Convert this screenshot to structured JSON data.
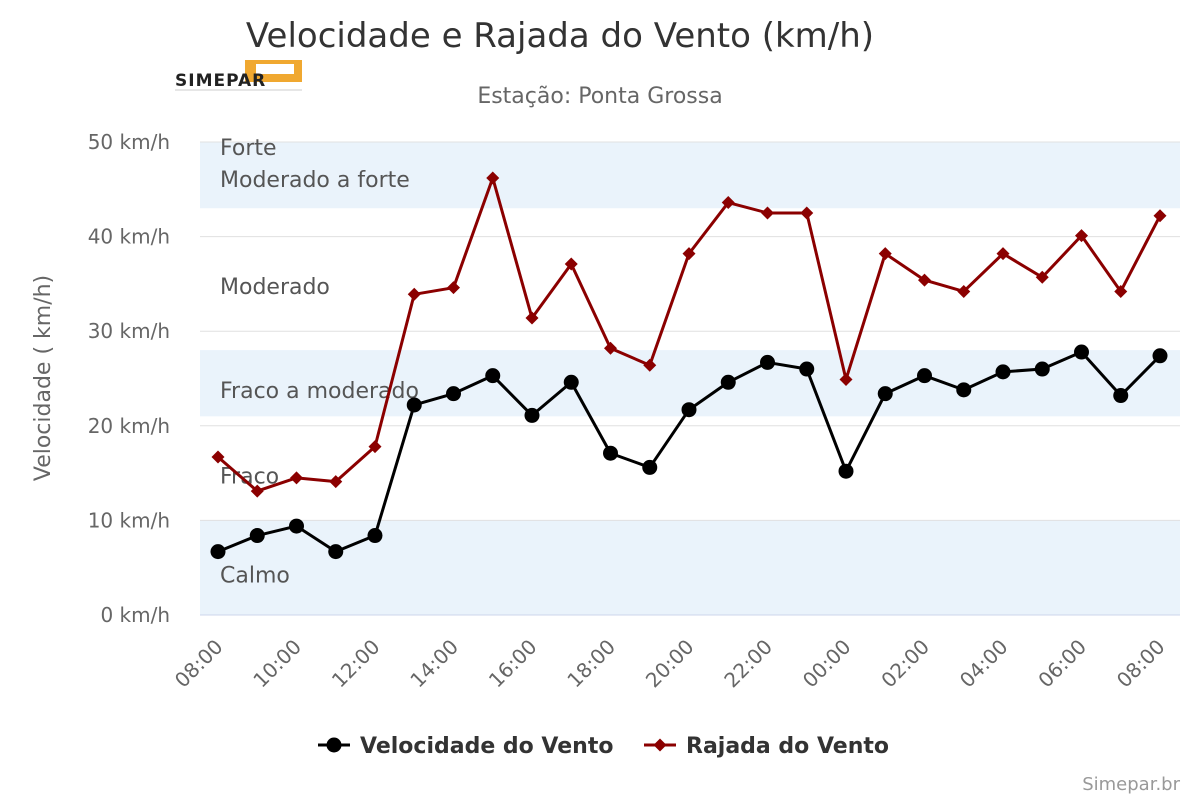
{
  "title": "Velocidade e Rajada do Vento (km/h)",
  "subtitle": "Estação: Ponta Grossa",
  "logo_text": "SIMEPAR",
  "credits": "Simepar.br",
  "chart_data": {
    "type": "line",
    "title": "Velocidade e Rajada do Vento (km/h)",
    "subtitle": "Estação: Ponta Grossa",
    "ylabel": "Velocidade ( km/h)",
    "xlabel": "",
    "ylim": [
      0,
      50
    ],
    "yticks": [
      0,
      10,
      20,
      30,
      40,
      50
    ],
    "ytick_labels": [
      "0 km/h",
      "10 km/h",
      "20 km/h",
      "30 km/h",
      "40 km/h",
      "50 km/h"
    ],
    "x": [
      "08:00",
      "09:00",
      "10:00",
      "11:00",
      "12:00",
      "13:00",
      "14:00",
      "15:00",
      "16:00",
      "17:00",
      "18:00",
      "19:00",
      "20:00",
      "21:00",
      "22:00",
      "23:00",
      "00:00",
      "01:00",
      "02:00",
      "03:00",
      "04:00",
      "05:00",
      "06:00",
      "07:00",
      "08:00"
    ],
    "xtick_labels": [
      "08:00",
      "10:00",
      "12:00",
      "14:00",
      "16:00",
      "18:00",
      "20:00",
      "22:00",
      "00:00",
      "02:00",
      "04:00",
      "06:00",
      "08:00"
    ],
    "grid": true,
    "legend_position": "bottom",
    "plot_bands": [
      {
        "from": 0,
        "to": 10,
        "label": "Calmo",
        "color": "#eaf3fb"
      },
      {
        "from": 10,
        "to": 21,
        "label": "Fraco",
        "color": "#ffffff"
      },
      {
        "from": 21,
        "to": 28,
        "label": "Fraco a moderado",
        "color": "#eaf3fb"
      },
      {
        "from": 28,
        "to": 43,
        "label": "Moderado",
        "color": "#ffffff"
      },
      {
        "from": 43,
        "to": 50,
        "label": "Moderado a forte",
        "color": "#eaf3fb"
      },
      {
        "from": 50,
        "to": 50,
        "label": "Forte",
        "color": "#eaf3fb"
      }
    ],
    "series": [
      {
        "name": "Velocidade do Vento",
        "color": "#000000",
        "marker": "circle",
        "values": [
          6.7,
          8.4,
          9.4,
          6.7,
          8.4,
          22.2,
          23.4,
          25.3,
          21.1,
          24.6,
          17.1,
          15.6,
          21.7,
          24.6,
          26.7,
          26.0,
          15.2,
          23.4,
          25.3,
          23.8,
          25.7,
          26.0,
          27.8,
          23.2,
          27.4
        ]
      },
      {
        "name": "Rajada do Vento",
        "color": "#8b0000",
        "marker": "diamond",
        "values": [
          16.7,
          13.1,
          14.5,
          14.1,
          17.8,
          33.9,
          34.6,
          46.2,
          31.4,
          37.1,
          28.2,
          26.4,
          38.2,
          43.6,
          42.5,
          42.5,
          24.9,
          38.2,
          35.4,
          34.2,
          38.2,
          35.7,
          40.1,
          34.2,
          42.2
        ]
      }
    ]
  }
}
